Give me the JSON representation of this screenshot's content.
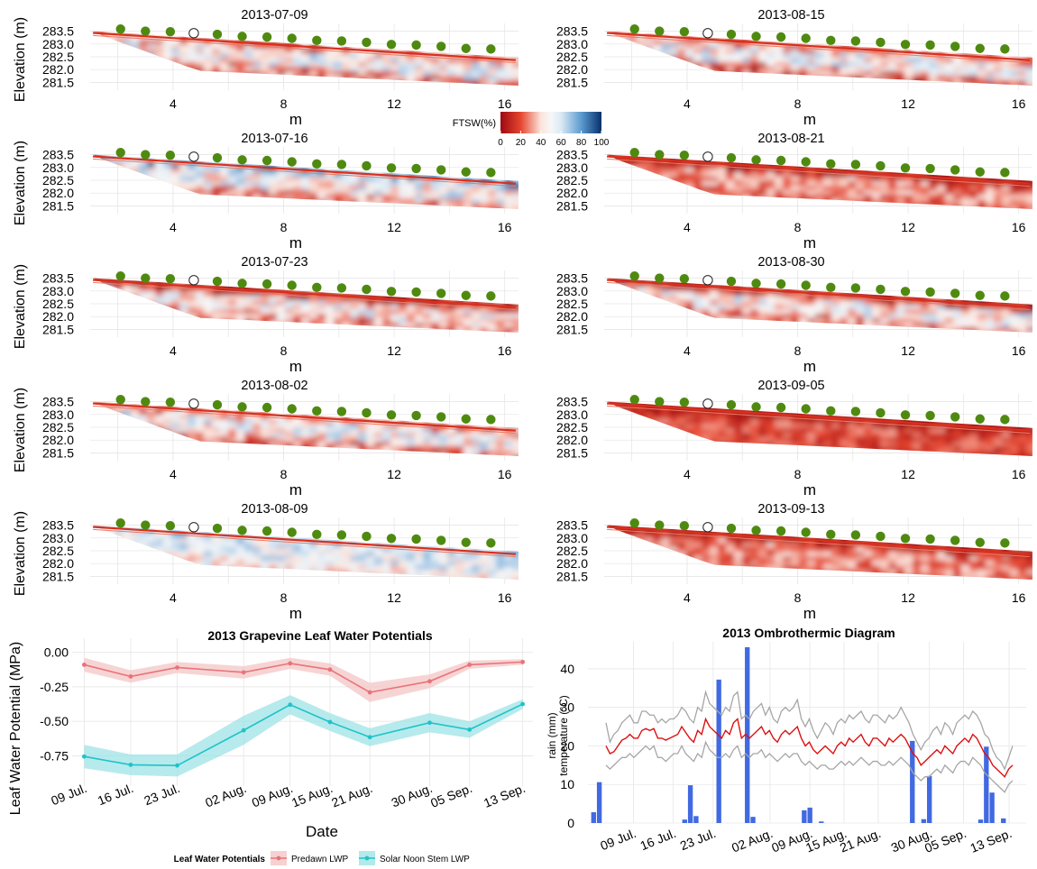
{
  "colors": {
    "predawn": "#e8737a",
    "predawn_band": "#f4c6c6",
    "noon": "#1fc3c9",
    "noon_band": "#9fe3e6",
    "rain": "#4169e1",
    "temp_mean": "#dd1111",
    "temp_minmax": "#a6a6a6",
    "sensor_dot": "#4f8a10",
    "grid": "#e6e6e6"
  },
  "chart_data": [
    {
      "type": "heatmap",
      "title": "2013-07-09",
      "xlabel": "m",
      "ylabel": "Elevation (m)",
      "x_ticks": [
        "4",
        "8",
        "12",
        "16"
      ],
      "y_ticks": [
        "283.5",
        "283.0",
        "282.5",
        "282.0",
        "281.5"
      ],
      "xlim": [
        1,
        16.5
      ],
      "ylim": [
        281.2,
        283.8
      ],
      "wetness": "mixed"
    },
    {
      "type": "heatmap",
      "title": "2013-08-15",
      "xlabel": "m",
      "ylabel": "",
      "x_ticks": [
        "4",
        "8",
        "12",
        "16"
      ],
      "y_ticks": [
        "283.5",
        "283.0",
        "282.5",
        "282.0",
        "281.5"
      ],
      "xlim": [
        1,
        16.5
      ],
      "ylim": [
        281.2,
        283.8
      ],
      "wetness": "mixed"
    },
    {
      "type": "heatmap",
      "title": "2013-07-16",
      "xlabel": "m",
      "ylabel": "Elevation (m)",
      "x_ticks": [
        "4",
        "8",
        "12",
        "16"
      ],
      "y_ticks": [
        "283.5",
        "283.0",
        "282.5",
        "282.0",
        "281.5"
      ],
      "xlim": [
        1,
        16.5
      ],
      "ylim": [
        281.2,
        283.8
      ],
      "wetness": "wet-top"
    },
    {
      "type": "heatmap",
      "title": "2013-08-21",
      "xlabel": "m",
      "ylabel": "",
      "x_ticks": [
        "4",
        "8",
        "12",
        "16"
      ],
      "y_ticks": [
        "283.5",
        "283.0",
        "282.5",
        "282.0",
        "281.5"
      ],
      "xlim": [
        1,
        16.5
      ],
      "ylim": [
        281.2,
        283.8
      ],
      "wetness": "dry"
    },
    {
      "type": "heatmap",
      "title": "2013-07-23",
      "xlabel": "m",
      "ylabel": "Elevation (m)",
      "x_ticks": [
        "4",
        "8",
        "12",
        "16"
      ],
      "y_ticks": [
        "283.5",
        "283.0",
        "282.5",
        "282.0",
        "281.5"
      ],
      "xlim": [
        1,
        16.5
      ],
      "ylim": [
        281.2,
        283.8
      ],
      "wetness": "dry-top"
    },
    {
      "type": "heatmap",
      "title": "2013-08-30",
      "xlabel": "m",
      "ylabel": "",
      "x_ticks": [
        "4",
        "8",
        "12",
        "16"
      ],
      "y_ticks": [
        "283.5",
        "283.0",
        "282.5",
        "282.0",
        "281.5"
      ],
      "xlim": [
        1,
        16.5
      ],
      "ylim": [
        281.2,
        283.8
      ],
      "wetness": "dry-top"
    },
    {
      "type": "heatmap",
      "title": "2013-08-02",
      "xlabel": "m",
      "ylabel": "Elevation (m)",
      "x_ticks": [
        "4",
        "8",
        "12",
        "16"
      ],
      "y_ticks": [
        "283.5",
        "283.0",
        "282.5",
        "282.0",
        "281.5"
      ],
      "xlim": [
        1,
        16.5
      ],
      "ylim": [
        281.2,
        283.8
      ],
      "wetness": "mixed"
    },
    {
      "type": "heatmap",
      "title": "2013-09-05",
      "xlabel": "m",
      "ylabel": "",
      "x_ticks": [
        "4",
        "8",
        "12",
        "16"
      ],
      "y_ticks": [
        "283.5",
        "283.0",
        "282.5",
        "282.0",
        "281.5"
      ],
      "xlim": [
        1,
        16.5
      ],
      "ylim": [
        281.2,
        283.8
      ],
      "wetness": "very-dry"
    },
    {
      "type": "heatmap",
      "title": "2013-08-09",
      "xlabel": "m",
      "ylabel": "Elevation (m)",
      "x_ticks": [
        "4",
        "8",
        "12",
        "16"
      ],
      "y_ticks": [
        "283.5",
        "283.0",
        "282.5",
        "282.0",
        "281.5"
      ],
      "xlim": [
        1,
        16.5
      ],
      "ylim": [
        281.2,
        283.8
      ],
      "wetness": "wet"
    },
    {
      "type": "heatmap",
      "title": "2013-09-13",
      "xlabel": "m",
      "ylabel": "",
      "x_ticks": [
        "4",
        "8",
        "12",
        "16"
      ],
      "y_ticks": [
        "283.5",
        "283.0",
        "282.5",
        "282.0",
        "281.5"
      ],
      "xlim": [
        1,
        16.5
      ],
      "ylim": [
        281.2,
        283.8
      ],
      "wetness": "dry"
    },
    {
      "type": "line",
      "title": "2013 Grapevine Leaf Water Potentials",
      "xlabel": "Date",
      "ylabel": "Leaf Water Potential (MPa)",
      "categories": [
        "09 Jul.",
        "16 Jul.",
        "23 Jul.",
        "02 Aug.",
        "09 Aug.",
        "15 Aug.",
        "21 Aug.",
        "30 Aug.",
        "05 Sep.",
        "13 Sep."
      ],
      "x_days": [
        "2013-07-09",
        "2013-07-16",
        "2013-07-23",
        "2013-08-02",
        "2013-08-09",
        "2013-08-15",
        "2013-08-21",
        "2013-08-30",
        "2013-09-05",
        "2013-09-13"
      ],
      "y_ticks": [
        "0.00",
        "-0.25",
        "-0.50",
        "-0.75"
      ],
      "ylim": [
        -0.93,
        0.05
      ],
      "legend_title": "Leaf Water Potentials",
      "legend_position": "bottom",
      "series": [
        {
          "name": "Predawn LWP",
          "values": [
            -0.09,
            -0.175,
            -0.11,
            -0.145,
            -0.08,
            -0.125,
            -0.29,
            -0.21,
            -0.09,
            -0.07
          ],
          "lower": [
            -0.14,
            -0.22,
            -0.15,
            -0.19,
            -0.12,
            -0.17,
            -0.36,
            -0.26,
            -0.12,
            -0.09
          ],
          "upper": [
            -0.04,
            -0.13,
            -0.07,
            -0.1,
            -0.04,
            -0.08,
            -0.22,
            -0.16,
            -0.06,
            -0.05
          ]
        },
        {
          "name": "Solar Noon Stem LWP",
          "values": [
            -0.755,
            -0.815,
            -0.82,
            -0.565,
            -0.38,
            -0.505,
            -0.615,
            -0.51,
            -0.56,
            -0.375
          ],
          "lower": [
            -0.84,
            -0.89,
            -0.9,
            -0.67,
            -0.45,
            -0.57,
            -0.68,
            -0.58,
            -0.62,
            -0.41
          ],
          "upper": [
            -0.67,
            -0.74,
            -0.74,
            -0.46,
            -0.31,
            -0.44,
            -0.55,
            -0.44,
            -0.5,
            -0.34
          ]
        }
      ]
    },
    {
      "type": "bar",
      "title": "2013 Ombrothermic Diagram",
      "ylabel": "rain (mm)\ntemperature (°C)",
      "categories": [
        "09 Jul.",
        "16 Jul.",
        "23 Jul.",
        "02 Aug.",
        "09 Aug.",
        "15 Aug.",
        "21 Aug.",
        "30 Aug.",
        "05 Sep.",
        "13 Sep."
      ],
      "x_days": [
        "2013-07-09",
        "2013-07-16",
        "2013-07-23",
        "2013-08-02",
        "2013-08-09",
        "2013-08-15",
        "2013-08-21",
        "2013-08-30",
        "2013-09-05",
        "2013-09-13"
      ],
      "date_range": [
        "2013-07-01",
        "2013-09-16"
      ],
      "y_ticks": [
        "0",
        "10",
        "20",
        "30",
        "40"
      ],
      "ylim": [
        0,
        47
      ],
      "rain": [
        {
          "date": "2013-07-02",
          "mm": 2.8
        },
        {
          "date": "2013-07-03",
          "mm": 10.6
        },
        {
          "date": "2013-07-18",
          "mm": 0.9
        },
        {
          "date": "2013-07-19",
          "mm": 9.8
        },
        {
          "date": "2013-07-20",
          "mm": 1.8
        },
        {
          "date": "2013-07-24",
          "mm": 37.2
        },
        {
          "date": "2013-07-29",
          "mm": 45.6
        },
        {
          "date": "2013-07-30",
          "mm": 1.6
        },
        {
          "date": "2013-08-08",
          "mm": 3.3
        },
        {
          "date": "2013-08-09",
          "mm": 4.0
        },
        {
          "date": "2013-08-11",
          "mm": 0.4
        },
        {
          "date": "2013-08-27",
          "mm": 21.3
        },
        {
          "date": "2013-08-29",
          "mm": 1.0
        },
        {
          "date": "2013-08-30",
          "mm": 12.2
        },
        {
          "date": "2013-09-08",
          "mm": 0.9
        },
        {
          "date": "2013-09-09",
          "mm": 19.8
        },
        {
          "date": "2013-09-10",
          "mm": 7.9
        },
        {
          "date": "2013-09-12",
          "mm": 1.2
        }
      ],
      "temp_mean": [
        20,
        18,
        18.5,
        20,
        21.5,
        22,
        23,
        22,
        22,
        24,
        24.5,
        24,
        24.5,
        22,
        22,
        21.5,
        22,
        22.5,
        23,
        25,
        23.5,
        22,
        21,
        24,
        23,
        27,
        25,
        24,
        23,
        22,
        24,
        23,
        26,
        27,
        22,
        23,
        22,
        23,
        24,
        25,
        23,
        24,
        22,
        21,
        23,
        24,
        23,
        24,
        25,
        22,
        20,
        21,
        19,
        18,
        19,
        20,
        19,
        18,
        20,
        21,
        20,
        22,
        21,
        22,
        23,
        21,
        20,
        22,
        22,
        21,
        20,
        22,
        21,
        22,
        23,
        22,
        20,
        18,
        17,
        15,
        16,
        17,
        18,
        19,
        18,
        20,
        19,
        18,
        20,
        21,
        22,
        21,
        23,
        22,
        20,
        18,
        17,
        15,
        14,
        13,
        12,
        14,
        15
      ],
      "temp_max": [
        26,
        21,
        23,
        24,
        26,
        27,
        28,
        26,
        26,
        29,
        29,
        28,
        28,
        26,
        27,
        26,
        27,
        27,
        28,
        30,
        29,
        27,
        26,
        30,
        29,
        34,
        31,
        30,
        29,
        28,
        30,
        29,
        33,
        34,
        27,
        28,
        27,
        29,
        30,
        31,
        28,
        30,
        27,
        26,
        29,
        30,
        29,
        30,
        32,
        27,
        25,
        27,
        24,
        22,
        24,
        26,
        25,
        23,
        26,
        27,
        26,
        28,
        27,
        28,
        29,
        27,
        26,
        28,
        28,
        27,
        26,
        28,
        27,
        28,
        30,
        28,
        26,
        23,
        21,
        19,
        21,
        22,
        24,
        25,
        23,
        26,
        25,
        23,
        26,
        27,
        28,
        27,
        29,
        28,
        26,
        23,
        22,
        19,
        17,
        16,
        14,
        17,
        20
      ],
      "temp_min": [
        15,
        14,
        15,
        16,
        17,
        17,
        18,
        17,
        18,
        19,
        20,
        19,
        20,
        17,
        17,
        16,
        17,
        18,
        18,
        20,
        18,
        17,
        16,
        18,
        17,
        21,
        19,
        18,
        17,
        17,
        18,
        17,
        19,
        20,
        17,
        18,
        17,
        18,
        18,
        19,
        17,
        18,
        17,
        16,
        17,
        18,
        17,
        18,
        18,
        16,
        15,
        16,
        15,
        14,
        15,
        15,
        14,
        14,
        15,
        16,
        15,
        16,
        15,
        16,
        17,
        16,
        15,
        16,
        16,
        15,
        15,
        16,
        15,
        16,
        17,
        16,
        15,
        13,
        12,
        11,
        12,
        12,
        13,
        14,
        13,
        15,
        14,
        13,
        15,
        16,
        16,
        15,
        17,
        16,
        15,
        13,
        12,
        11,
        10,
        9,
        8,
        10,
        11
      ]
    }
  ],
  "colorbar": {
    "label": "FTSW(%)",
    "ticks": [
      "0",
      "20",
      "40",
      "60",
      "80",
      "100"
    ],
    "range": [
      0,
      100
    ]
  }
}
